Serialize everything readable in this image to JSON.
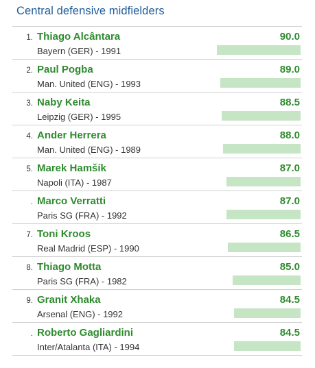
{
  "title": "Central defensive midfielders",
  "players": [
    {
      "rank": "1.",
      "name": "Thiago Alcântara",
      "info": "Bayern (GER) - 1991",
      "score": "90.0",
      "value": 90.0
    },
    {
      "rank": "2.",
      "name": "Paul Pogba",
      "info": "Man. United (ENG) - 1993",
      "score": "89.0",
      "value": 89.0
    },
    {
      "rank": "3.",
      "name": "Naby Keita",
      "info": "Leipzig (GER) - 1995",
      "score": "88.5",
      "value": 88.5
    },
    {
      "rank": "4.",
      "name": "Ander Herrera",
      "info": "Man. United (ENG) - 1989",
      "score": "88.0",
      "value": 88.0
    },
    {
      "rank": "5.",
      "name": "Marek Hamšík",
      "info": "Napoli (ITA) - 1987",
      "score": "87.0",
      "value": 87.0
    },
    {
      "rank": ".",
      "name": "Marco Verratti",
      "info": "Paris SG (FRA) - 1992",
      "score": "87.0",
      "value": 87.0
    },
    {
      "rank": "7.",
      "name": "Toni Kroos",
      "info": "Real Madrid (ESP) - 1990",
      "score": "86.5",
      "value": 86.5
    },
    {
      "rank": "8.",
      "name": "Thiago Motta",
      "info": "Paris SG (FRA) - 1982",
      "score": "85.0",
      "value": 85.0
    },
    {
      "rank": "9.",
      "name": "Granit Xhaka",
      "info": "Arsenal (ENG) - 1992",
      "score": "84.5",
      "value": 84.5
    },
    {
      "rank": ".",
      "name": "Roberto Gagliardini",
      "info": "Inter/Atalanta (ITA) - 1994",
      "score": "84.5",
      "value": 84.5
    }
  ],
  "colors": {
    "title": "#1f5c99",
    "accent": "#2e8b2e",
    "bar": "#c5e5c5",
    "divider": "#cfcfcf"
  }
}
